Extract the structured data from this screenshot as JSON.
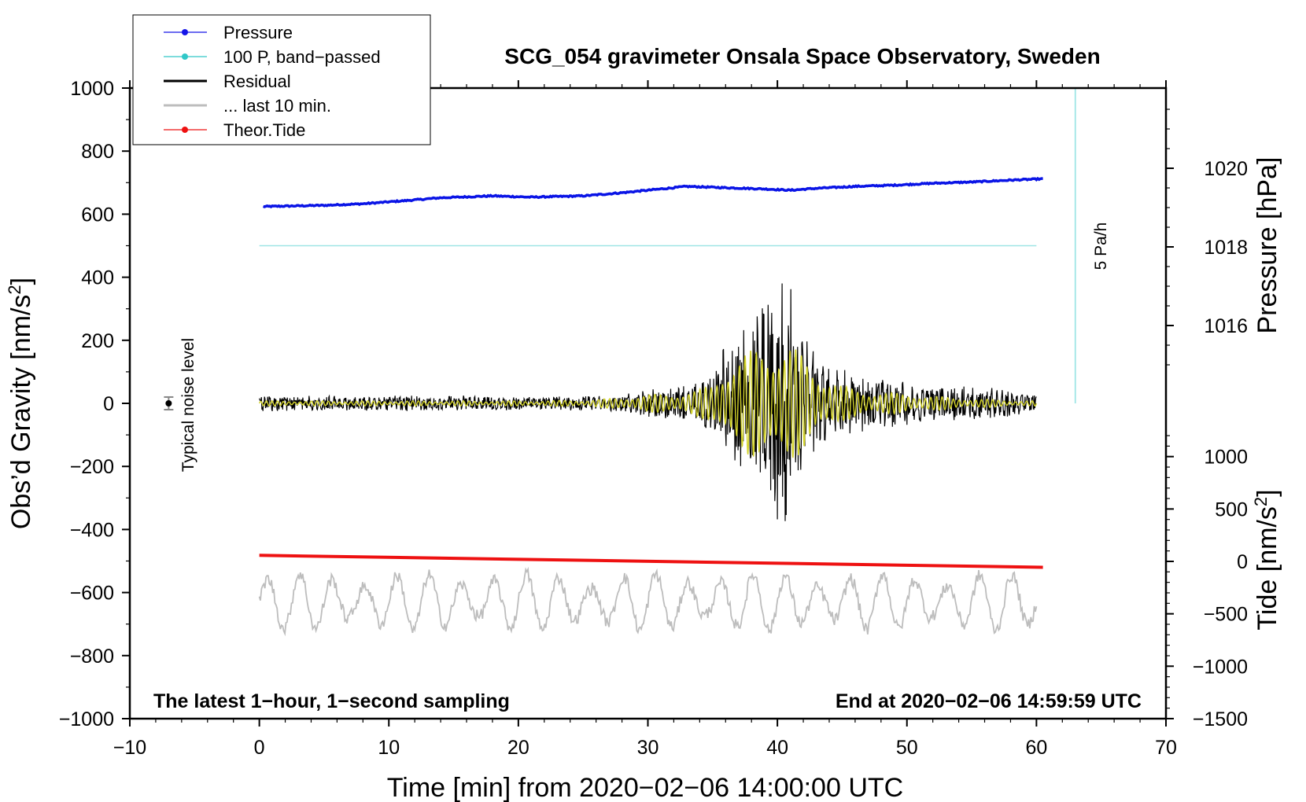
{
  "chart_data": {
    "type": "line",
    "title": "SCG_054 gravimeter Onsala Space Observatory, Sweden",
    "xlabel": "Time [min] from 2020−02−06 14:00:00 UTC",
    "xlim": [
      -10,
      70
    ],
    "x_ticks": [
      -10,
      0,
      10,
      20,
      30,
      40,
      50,
      60,
      70
    ],
    "x_tick_labels": [
      "−10",
      "0",
      "10",
      "20",
      "30",
      "40",
      "50",
      "60",
      "70"
    ],
    "left_axis": {
      "label_main": "Obs’d Gravity [nm/s",
      "label_sup": "2",
      "label_end": "]",
      "ylim": [
        -1000,
        1000
      ],
      "ticks": [
        1000,
        800,
        600,
        400,
        200,
        0,
        -200,
        -400,
        -600,
        -800,
        -1000
      ],
      "tick_labels": [
        "1000",
        "800",
        "600",
        "400",
        "200",
        "0",
        "−200",
        "−400",
        "−600",
        "−800",
        "−1000"
      ]
    },
    "right_pressure_axis": {
      "label": "Pressure [hPa]",
      "ticks": [
        1020,
        1018,
        1016
      ],
      "tick_labels": [
        "1020",
        "1018",
        "1016"
      ]
    },
    "right_tide_axis": {
      "label_main": "Tide [nm/s",
      "label_sup": "2",
      "label_end": "]",
      "ticks": [
        1000,
        500,
        0,
        -500,
        -1000,
        -1500
      ],
      "tick_labels": [
        "1000",
        "500",
        "0",
        "−500",
        "−1000",
        "−1500"
      ]
    },
    "legend": [
      {
        "label": "Pressure",
        "color": "#1515e8",
        "marker": true
      },
      {
        "label": "100 P, band−passed",
        "color": "#30c8c8",
        "marker": true
      },
      {
        "label": "Residual",
        "color": "#000000",
        "marker": false
      },
      {
        "label": "... last 10 min.",
        "color": "#bdbdbd",
        "marker": false
      },
      {
        "label": "Theor.Tide",
        "color": "#ee1111",
        "marker": true
      }
    ],
    "series": [
      {
        "name": "Pressure",
        "color": "#0a14e6",
        "x": [
          0,
          5,
          8,
          11,
          14,
          18,
          21,
          25,
          28,
          31,
          33,
          36,
          39,
          41,
          43,
          46,
          49,
          52,
          55,
          58,
          60.5
        ],
        "y": [
          624,
          628,
          633,
          642,
          652,
          658,
          654,
          658,
          668,
          680,
          688,
          684,
          680,
          676,
          682,
          688,
          692,
          698,
          702,
          708,
          712
        ]
      },
      {
        "name": "100 P, band−passed",
        "color": "#9fe6e6",
        "x": [
          0,
          60
        ],
        "y": [
          500,
          500
        ]
      },
      {
        "name": "Theor.Tide",
        "color": "#ee1111",
        "x": [
          0,
          60.5
        ],
        "y": [
          -482,
          -520
        ]
      }
    ],
    "envelope": {
      "x": [
        0,
        5,
        10,
        15,
        20,
        25,
        28,
        30,
        32,
        34,
        35,
        36,
        37,
        38,
        39,
        40,
        41,
        42,
        43,
        44,
        45,
        47,
        50,
        53,
        55,
        58,
        60
      ],
      "residual_amplitude": [
        25,
        25,
        25,
        25,
        22,
        22,
        28,
        45,
        50,
        70,
        90,
        200,
        220,
        260,
        330,
        440,
        380,
        230,
        160,
        130,
        110,
        85,
        70,
        55,
        55,
        45,
        35
      ],
      "filtered_amplitude": [
        8,
        8,
        8,
        8,
        8,
        10,
        18,
        28,
        30,
        45,
        60,
        130,
        150,
        170,
        190,
        200,
        190,
        150,
        110,
        80,
        55,
        40,
        30,
        20,
        15,
        10,
        8
      ]
    },
    "last_10_min": {
      "center": -630,
      "amplitude": 100
    },
    "noise_level": {
      "x": -7,
      "y": 0,
      "error": 20,
      "label": "Typical noise level"
    },
    "scale_bar": {
      "x": 63,
      "label": "5 Pa/h"
    },
    "annotation_left": "The latest 1−hour, 1−second sampling",
    "annotation_right": "End at 2020−02−06 14:59:59 UTC"
  }
}
